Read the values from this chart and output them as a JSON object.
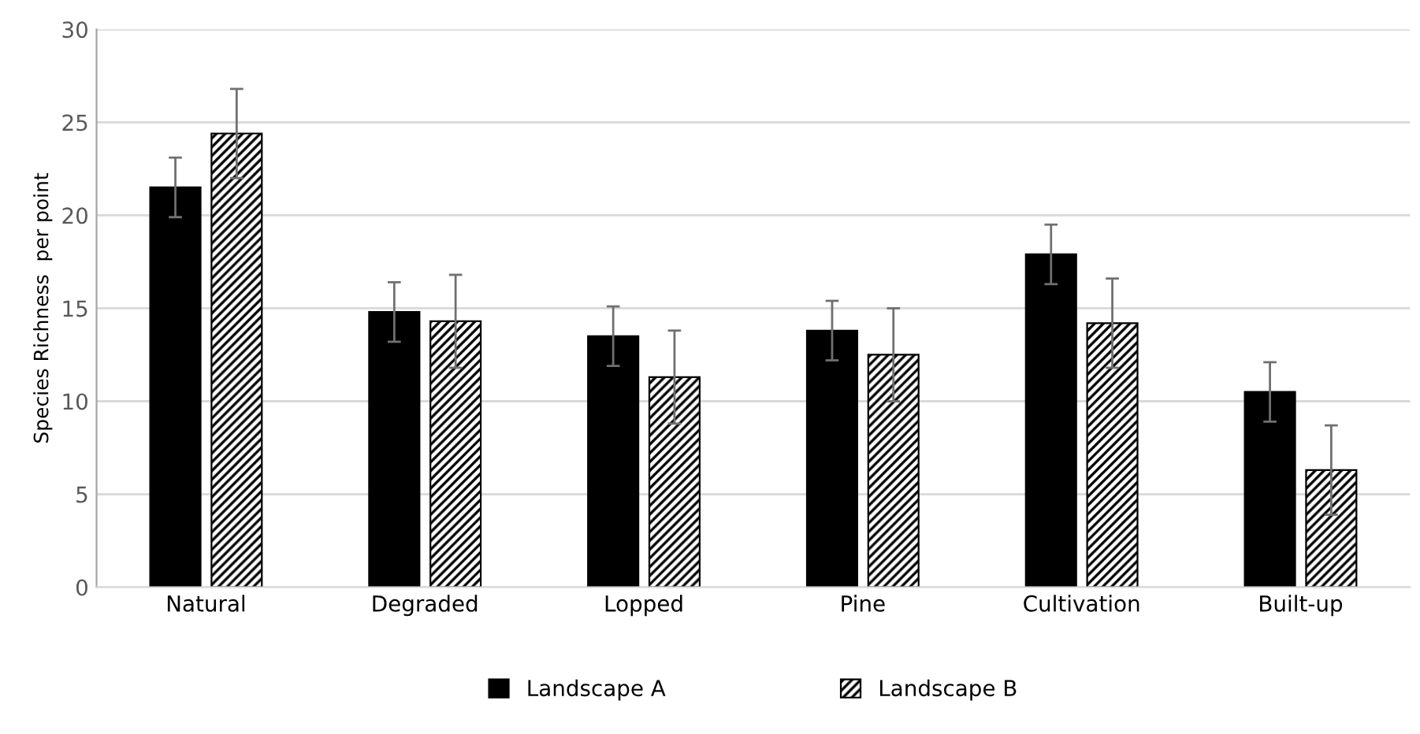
{
  "chart_data": {
    "type": "bar",
    "ylabel": "Species Richness  per point",
    "categories": [
      "Natural",
      "Degraded",
      "Lopped",
      "Pine",
      "Cultivation",
      "Built-up"
    ],
    "series": [
      {
        "name": "Landscape A",
        "color": "#000000",
        "values": [
          21.5,
          14.8,
          13.5,
          13.8,
          17.9,
          10.5
        ],
        "errors": [
          1.6,
          1.6,
          1.6,
          1.6,
          1.6,
          1.6
        ]
      },
      {
        "name": "Landscape B",
        "color": "#000000",
        "values": [
          24.4,
          14.3,
          11.3,
          12.5,
          14.2,
          6.3
        ],
        "errors": [
          2.4,
          2.5,
          2.5,
          2.5,
          2.4,
          2.4
        ]
      }
    ],
    "ylim": [
      0,
      30
    ],
    "yticks": [
      0,
      5,
      10,
      15,
      20,
      25,
      30
    ],
    "grid": "y",
    "legend": "bottom"
  }
}
